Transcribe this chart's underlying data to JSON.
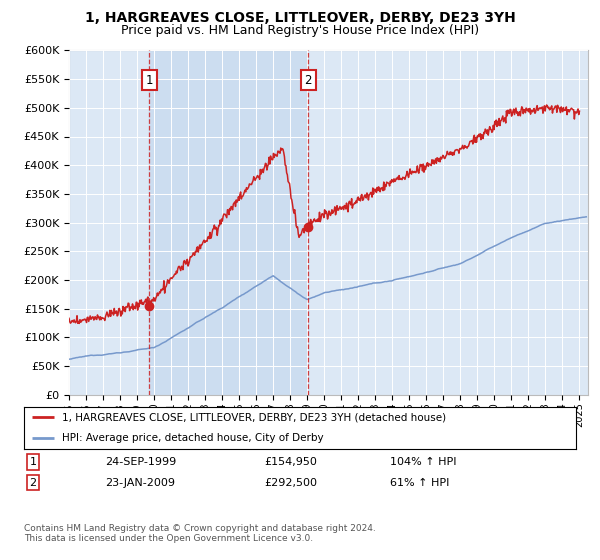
{
  "title": "1, HARGREAVES CLOSE, LITTLEOVER, DERBY, DE23 3YH",
  "subtitle": "Price paid vs. HM Land Registry's House Price Index (HPI)",
  "legend_line1": "1, HARGREAVES CLOSE, LITTLEOVER, DERBY, DE23 3YH (detached house)",
  "legend_line2": "HPI: Average price, detached house, City of Derby",
  "sale1_date": "24-SEP-1999",
  "sale1_price": "£154,950",
  "sale1_hpi": "104% ↑ HPI",
  "sale1_year": 1999.73,
  "sale1_value": 154950,
  "sale2_date": "23-JAN-2009",
  "sale2_price": "£292,500",
  "sale2_hpi": "61% ↑ HPI",
  "sale2_year": 2009.06,
  "sale2_value": 292500,
  "footer": "Contains HM Land Registry data © Crown copyright and database right 2024.\nThis data is licensed under the Open Government Licence v3.0.",
  "ylim": [
    0,
    600000
  ],
  "xlim_start": 1995.0,
  "xlim_end": 2025.5,
  "background_color": "#dce8f5",
  "shaded_color": "#ccddf0",
  "red_line_color": "#cc2222",
  "blue_line_color": "#7799cc",
  "grid_color": "#ffffff",
  "marker_box_color": "#cc2222",
  "title_fontsize": 10,
  "subtitle_fontsize": 9
}
